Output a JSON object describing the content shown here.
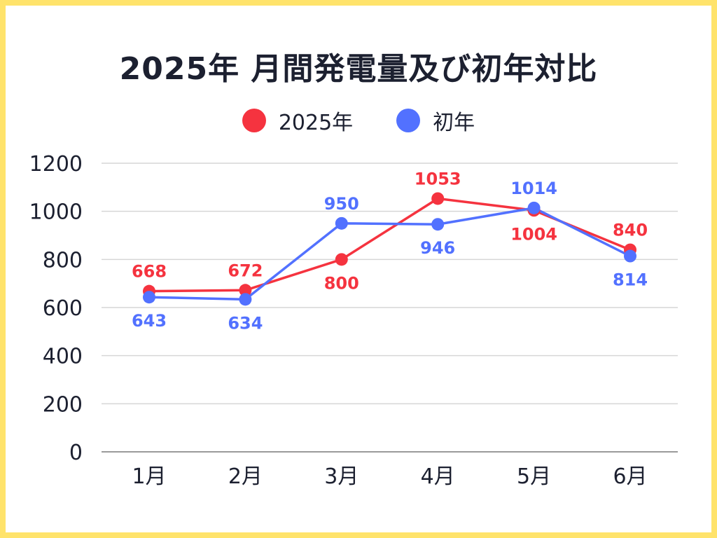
{
  "title": "2025年 月間発電量及び初年対比",
  "chart_data": {
    "type": "line",
    "categories": [
      "1月",
      "2月",
      "3月",
      "4月",
      "5月",
      "6月"
    ],
    "series": [
      {
        "name": "2025年",
        "color": "#f5333f",
        "values": [
          668,
          672,
          800,
          1053,
          1004,
          840
        ]
      },
      {
        "name": "初年",
        "color": "#5271ff",
        "values": [
          643,
          634,
          950,
          946,
          1014,
          814
        ]
      }
    ],
    "ylim": [
      0,
      1200
    ],
    "yticks": [
      0,
      200,
      400,
      600,
      800,
      1000,
      1200
    ],
    "grid": true,
    "legend": "top-center"
  }
}
